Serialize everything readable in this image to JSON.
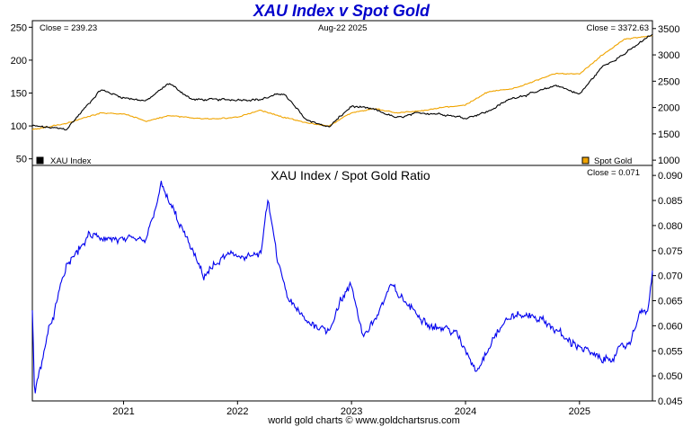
{
  "title": "XAU Index v Spot Gold",
  "footer": "world gold charts © www.goldchartsrus.com",
  "colors": {
    "xau": "#000000",
    "gold": "#f0a400",
    "ratio": "#0000ee",
    "title": "#0000cc"
  },
  "chart_data": [
    {
      "type": "line",
      "id": "top",
      "date_label": "Aug-22  2025",
      "x": [
        2020.2,
        2020.5,
        2020.8,
        2021.0,
        2021.2,
        2021.4,
        2021.6,
        2021.8,
        2022.0,
        2022.2,
        2022.4,
        2022.6,
        2022.8,
        2023.0,
        2023.2,
        2023.4,
        2023.6,
        2023.8,
        2024.0,
        2024.2,
        2024.4,
        2024.6,
        2024.8,
        2025.0,
        2025.2,
        2025.4,
        2025.6,
        2025.64
      ],
      "xlim": [
        2020.2,
        2025.64
      ],
      "ylim_left": [
        40,
        260
      ],
      "left_ticks": [
        50,
        100,
        150,
        200,
        250
      ],
      "ylim_right": [
        900,
        3650
      ],
      "right_ticks": [
        1000,
        1500,
        2000,
        2500,
        3000,
        3500
      ],
      "series": [
        {
          "name": "XAU Index",
          "axis": "left",
          "close_label": "Close = 239.23",
          "values": [
            100,
            95,
            155,
            143,
            138,
            165,
            140,
            140,
            140,
            140,
            150,
            110,
            98,
            130,
            125,
            112,
            120,
            118,
            112,
            122,
            142,
            150,
            162,
            148,
            190,
            210,
            235,
            239.23
          ]
        },
        {
          "name": "Spot Gold",
          "axis": "right",
          "close_label": "Close = 3372.63",
          "values": [
            1580,
            1700,
            1900,
            1880,
            1740,
            1850,
            1800,
            1780,
            1820,
            1950,
            1820,
            1710,
            1650,
            1900,
            1980,
            1900,
            1930,
            2000,
            2050,
            2300,
            2350,
            2500,
            2650,
            2630,
            3000,
            3300,
            3350,
            3372.63
          ]
        }
      ]
    },
    {
      "type": "line",
      "id": "ratio",
      "title": "XAU Index  /  Spot Gold Ratio",
      "close_label": "Close = 0.071",
      "x": [
        2020.2,
        2020.22,
        2020.3,
        2020.5,
        2020.7,
        2021.0,
        2021.2,
        2021.33,
        2021.5,
        2021.7,
        2021.9,
        2022.0,
        2022.2,
        2022.27,
        2022.35,
        2022.45,
        2022.6,
        2022.8,
        2022.9,
        2023.0,
        2023.1,
        2023.2,
        2023.35,
        2023.5,
        2023.7,
        2023.9,
        2024.0,
        2024.1,
        2024.25,
        2024.4,
        2024.6,
        2024.75,
        2024.9,
        2025.0,
        2025.2,
        2025.3,
        2025.45,
        2025.55,
        2025.6,
        2025.64
      ],
      "values": [
        0.063,
        0.046,
        0.055,
        0.072,
        0.078,
        0.077,
        0.077,
        0.088,
        0.08,
        0.07,
        0.074,
        0.074,
        0.074,
        0.085,
        0.073,
        0.065,
        0.061,
        0.059,
        0.065,
        0.068,
        0.058,
        0.061,
        0.068,
        0.064,
        0.06,
        0.059,
        0.055,
        0.051,
        0.058,
        0.062,
        0.062,
        0.06,
        0.057,
        0.056,
        0.053,
        0.054,
        0.057,
        0.064,
        0.062,
        0.071
      ],
      "xlim": [
        2020.2,
        2025.64
      ],
      "ylim": [
        0.045,
        0.092
      ],
      "ticks": [
        0.045,
        0.05,
        0.055,
        0.06,
        0.065,
        0.07,
        0.075,
        0.08,
        0.085,
        0.09
      ],
      "x_ticks": [
        2021,
        2022,
        2023,
        2024,
        2025
      ]
    }
  ]
}
